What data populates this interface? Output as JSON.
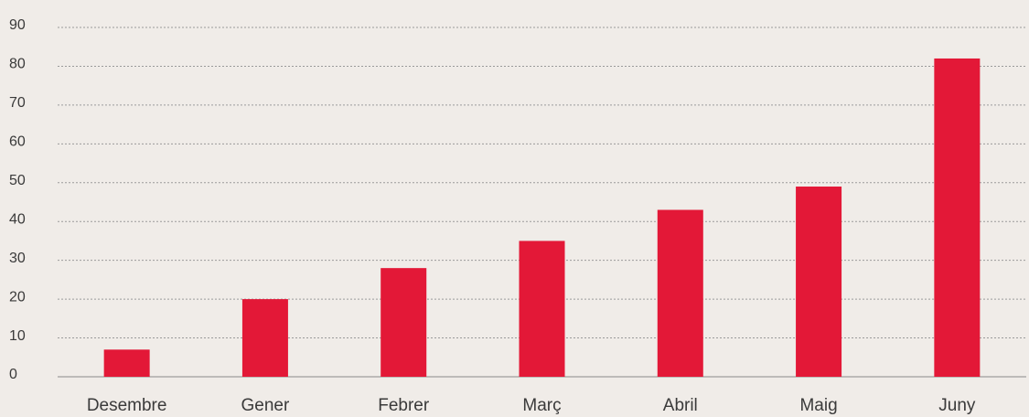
{
  "chart_data": {
    "type": "bar",
    "categories": [
      "Desembre",
      "Gener",
      "Febrer",
      "Març",
      "Abril",
      "Maig",
      "Juny"
    ],
    "values": [
      7,
      20,
      28,
      35,
      43,
      49,
      82
    ],
    "color": "#e31837",
    "ylim": [
      0,
      90
    ],
    "yticks": [
      0,
      10,
      20,
      30,
      40,
      50,
      60,
      70,
      80,
      90
    ],
    "grid": true
  }
}
